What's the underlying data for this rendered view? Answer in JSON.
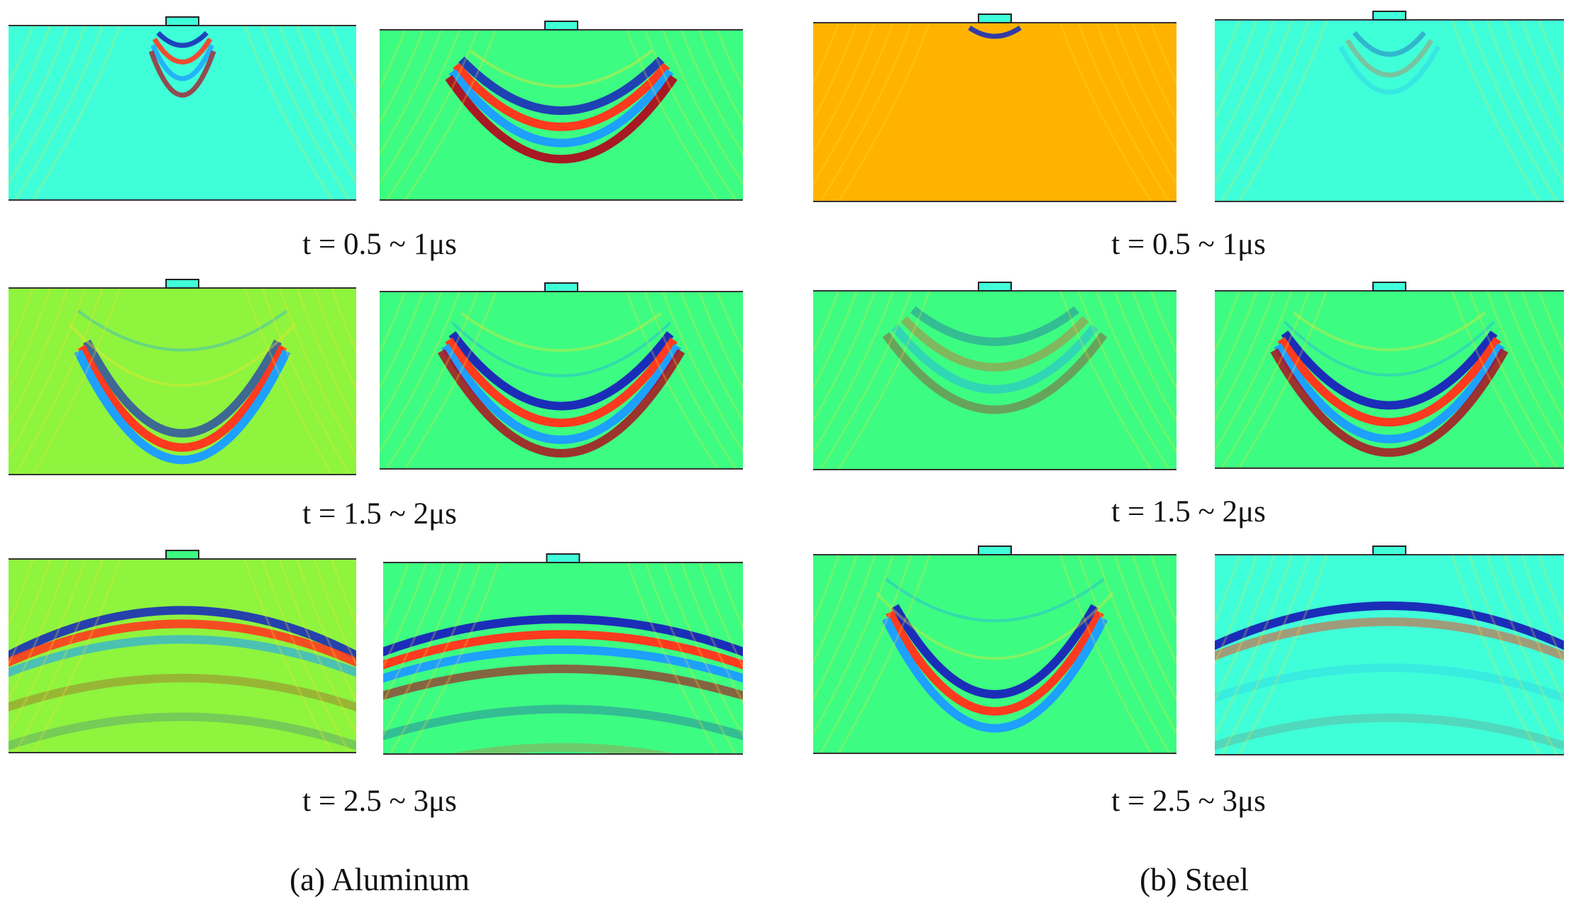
{
  "colors": {
    "cold_extreme": "#1b2db8",
    "cold": "#1ea0ff",
    "neutral_cyan": "#3fffd9",
    "neutral_green": "#3dfc82",
    "neutral_lime": "#8ef43e",
    "neutral_orange": "#ffb300",
    "warm": "#ffe12a",
    "hot": "#ff3a1e",
    "hot_extreme": "#b40018"
  },
  "columns": [
    {
      "id": "aluminum",
      "label": "(a) Aluminum",
      "rows": [
        {
          "time_label": "t = 0.5 ~ 1μs",
          "panels": [
            {
              "background": "neutral_cyan",
              "pattern": "source-near"
            },
            {
              "background": "neutral_green",
              "pattern": "mid-downward"
            }
          ]
        },
        {
          "time_label": "t = 1.5 ~ 2μs",
          "panels": [
            {
              "background": "neutral_lime",
              "pattern": "at-bottom"
            },
            {
              "background": "neutral_green",
              "pattern": "near-bottom-strong"
            }
          ]
        },
        {
          "time_label": "t = 2.5 ~ 3μs",
          "panels": [
            {
              "background": "neutral_lime",
              "pattern": "reflected-top"
            },
            {
              "background": "neutral_green",
              "pattern": "reflected-top-strong"
            }
          ]
        }
      ]
    },
    {
      "id": "steel",
      "label": "(b) Steel",
      "rows": [
        {
          "time_label": "t = 0.5 ~ 1μs",
          "panels": [
            {
              "background": "neutral_orange",
              "pattern": "source-only"
            },
            {
              "background": "neutral_cyan",
              "pattern": "source-faint"
            }
          ]
        },
        {
          "time_label": "t = 1.5 ~ 2μs",
          "panels": [
            {
              "background": "neutral_green",
              "pattern": "mid-faint"
            },
            {
              "background": "neutral_green",
              "pattern": "near-bottom-strong"
            }
          ]
        },
        {
          "time_label": "t = 2.5 ~ 3μs",
          "panels": [
            {
              "background": "neutral_green",
              "pattern": "at-bottom-strong"
            },
            {
              "background": "neutral_cyan",
              "pattern": "reflected-top-faint"
            }
          ]
        }
      ]
    }
  ]
}
